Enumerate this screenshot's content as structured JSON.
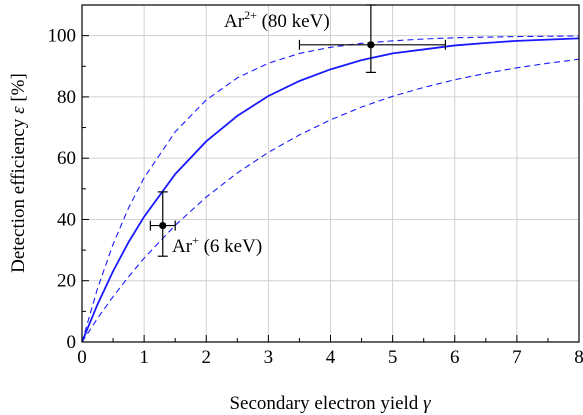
{
  "chart_data": {
    "type": "line",
    "xlabel": "Secondary electron yield",
    "xlabel_symbol": "γ",
    "ylabel": "Detection efficiency",
    "ylabel_symbol": "ε",
    "ylabel_unit": "[%]",
    "xlim": [
      0,
      8
    ],
    "ylim": [
      0,
      110
    ],
    "xticks": [
      "0",
      "1",
      "2",
      "3",
      "4",
      "5",
      "6",
      "7",
      "8"
    ],
    "yticks": [
      "0",
      "20",
      "40",
      "60",
      "80",
      "100"
    ],
    "grid": true,
    "colors": {
      "curve": "#1a1aff",
      "points": "#000000"
    },
    "series": [
      {
        "style": "solid",
        "x": [
          0,
          0.25,
          0.5,
          0.75,
          1,
          1.5,
          2,
          2.5,
          3,
          3.5,
          4,
          4.5,
          5,
          5.5,
          6,
          6.5,
          7,
          7.5,
          8
        ],
        "y": [
          0,
          12.3,
          23.1,
          32.6,
          40.9,
          54.8,
          65.5,
          73.8,
          80.3,
          85.2,
          89.0,
          92.0,
          94.2,
          95.5,
          96.8,
          97.6,
          98.3,
          98.7,
          99.1
        ]
      },
      {
        "style": "dashed",
        "x": [
          0,
          0.25,
          0.5,
          0.75,
          1,
          1.5,
          2,
          2.5,
          3,
          3.5,
          4,
          4.5,
          5,
          5.5,
          6,
          6.5,
          7,
          7.5,
          8
        ],
        "y": [
          0,
          17.5,
          31.9,
          43.8,
          53.6,
          68.6,
          79.0,
          86.2,
          91.0,
          94.2,
          96.2,
          97.5,
          98.3,
          98.9,
          99.3,
          99.5,
          99.7,
          99.8,
          99.9
        ]
      },
      {
        "style": "dashed",
        "x": [
          0,
          0.25,
          0.5,
          0.75,
          1,
          1.5,
          2,
          2.5,
          3,
          3.5,
          4,
          4.5,
          5,
          5.5,
          6,
          6.5,
          7,
          7.5,
          8
        ],
        "y": [
          0,
          7.7,
          14.8,
          21.3,
          27.4,
          38.1,
          47.3,
          55.2,
          61.9,
          67.6,
          72.5,
          76.7,
          80.2,
          83.1,
          85.6,
          87.7,
          89.5,
          91.0,
          92.3
        ]
      }
    ],
    "points": [
      {
        "label_base": "Ar",
        "label_sup": "+",
        "label_rest": " (6 keV)",
        "x": 1.3,
        "y": 38,
        "xerr": [
          1.1,
          1.5
        ],
        "yerr": [
          28,
          49
        ]
      },
      {
        "label_base": "Ar",
        "label_sup": "2+",
        "label_rest": " (80 keV)",
        "x": 4.65,
        "y": 97,
        "xerr": [
          3.5,
          5.85
        ],
        "yerr": [
          88,
          110
        ]
      }
    ]
  }
}
